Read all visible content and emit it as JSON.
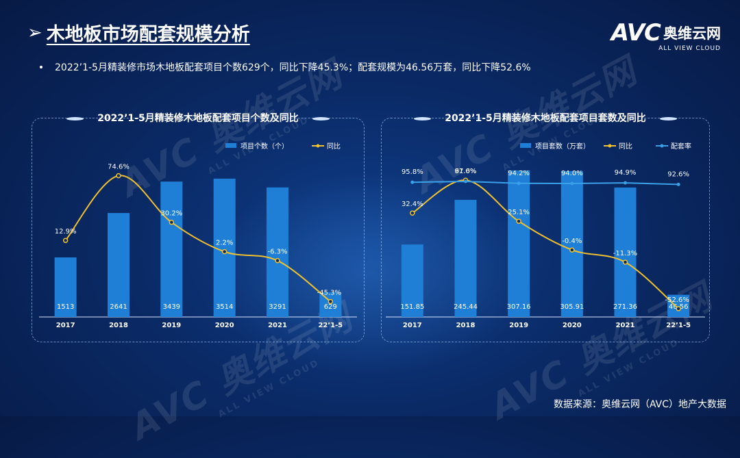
{
  "page": {
    "title_arrow": "➢",
    "title": "木地板市场配套规模分析",
    "logo_mark": "AVC",
    "logo_cn": "奥维云网",
    "logo_en": "ALL VIEW CLOUD",
    "summary": "2022’1-5月精装修市场木地板配套项目个数629个，同比下降45.3%；配套规模为46.56万套，同比下降52.6%",
    "footer": "数据来源：奥维云网（AVC）地产大数据",
    "watermark_big": "AVC 奥维云网",
    "watermark_small": "ALL VIEW CLOUD"
  },
  "colors": {
    "bar": "#1f7fd6",
    "line_yoy": "#f2c12e",
    "line_rate": "#3aa0e8",
    "axis": "#d8e6ff"
  },
  "chart_data": [
    {
      "type": "bar",
      "title": "2022’1-5月精装修木地板配套项目个数及同比",
      "categories": [
        "2017",
        "2018",
        "2019",
        "2020",
        "2021",
        "22’1-5"
      ],
      "series": [
        {
          "name": "项目个数（个）",
          "kind": "bar",
          "values": [
            1513,
            2641,
            3439,
            3514,
            3291,
            629
          ],
          "labels": [
            "1513",
            "2641",
            "3439",
            "3514",
            "3291",
            "629"
          ]
        },
        {
          "name": "同比",
          "kind": "line",
          "values": [
            12.9,
            74.6,
            30.2,
            2.2,
            -6.3,
            -45.3
          ],
          "labels": [
            "12.9%",
            "74.6%",
            "30.2%",
            "2.2%",
            "-6.3%",
            "-45.3%"
          ]
        }
      ],
      "legend_position": "top-right",
      "ylim_bar": [
        0,
        4000
      ],
      "ylim_line": [
        -60,
        90
      ]
    },
    {
      "type": "bar",
      "title": "2022’1-5月精装修木地板配套项目套数及同比",
      "categories": [
        "2017",
        "2018",
        "2019",
        "2020",
        "2021",
        "22’1-5"
      ],
      "series": [
        {
          "name": "项目套数（万套）",
          "kind": "bar",
          "values": [
            151.85,
            245.44,
            307.16,
            305.91,
            271.36,
            46.56
          ],
          "labels": [
            "151.85",
            "245.44",
            "307.16",
            "305.91",
            "271.36",
            "46.56"
          ]
        },
        {
          "name": "同比",
          "kind": "line",
          "values": [
            32.4,
            61.6,
            25.1,
            -0.4,
            -11.3,
            -52.6
          ],
          "labels": [
            "32.4%",
            "61.6%",
            "25.1%",
            "-0.4%",
            "-11.3%",
            "-52.6%"
          ]
        },
        {
          "name": "配套率",
          "kind": "line",
          "values": [
            95.8,
            97.0,
            94.2,
            94.0,
            94.9,
            92.6
          ],
          "labels": [
            "95.8%",
            "97.0%",
            "94.2%",
            "94.0%",
            "94.9%",
            "92.6%"
          ]
        }
      ],
      "legend_position": "top-right",
      "ylim_bar": [
        0,
        330
      ],
      "ylim_line": [
        -60,
        80
      ]
    }
  ]
}
